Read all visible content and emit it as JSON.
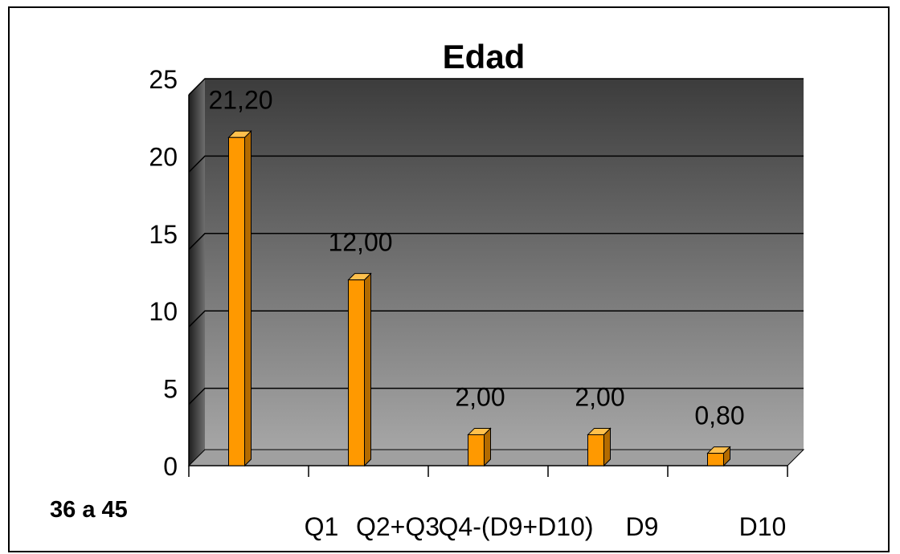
{
  "chart_data": {
    "type": "bar",
    "title": "Edad",
    "xlabel": "",
    "ylabel": "",
    "ylim": [
      0,
      25
    ],
    "yticks": [
      0,
      5,
      10,
      15,
      20,
      25
    ],
    "grid": true,
    "legend": "none",
    "group_label": "36 a 45",
    "categories": [
      "Q1",
      "Q2+Q3",
      "Q4-(D9+D10)",
      "D9",
      "D10"
    ],
    "values": [
      21.2,
      12.0,
      2.0,
      2.0,
      0.8
    ],
    "data_labels": [
      "21,20",
      "12,00",
      "2,00",
      "2,00",
      "0,80"
    ],
    "colors": {
      "bar_front": "#ff9900",
      "bar_side": "#b36b00",
      "bar_top": "#ffc04d",
      "wall_top": "#3c3c3c",
      "wall_bottom": "#a6a6a6",
      "gridline": "#000000"
    }
  }
}
